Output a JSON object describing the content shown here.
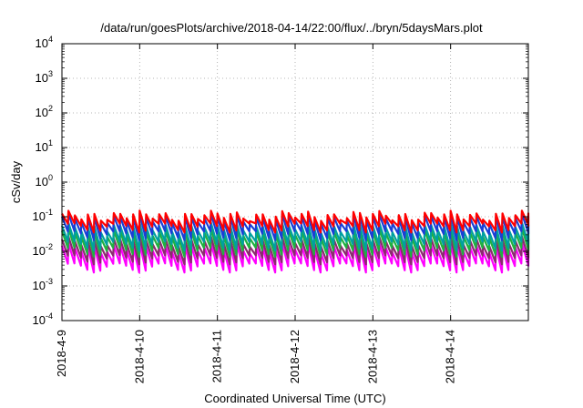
{
  "chart_data": {
    "type": "line",
    "title": "/data/run/goesPlots/archive/2018-04-14/22:00/flux/../bryn/5daysMars.plot",
    "xlabel": "Coordinated Universal Time (UTC)",
    "ylabel": "cSv/day",
    "yscale": "log",
    "ylim": [
      0.0001,
      10000
    ],
    "xlim": [
      "2018-04-09 00:00",
      "2018-04-15 00:00"
    ],
    "grid": true,
    "y_ticks": [
      {
        "base": "10",
        "exp": "-4"
      },
      {
        "base": "10",
        "exp": "-3"
      },
      {
        "base": "10",
        "exp": "-2"
      },
      {
        "base": "10",
        "exp": "-1"
      },
      {
        "base": "10",
        "exp": "0"
      },
      {
        "base": "10",
        "exp": "1"
      },
      {
        "base": "10",
        "exp": "2"
      },
      {
        "base": "10",
        "exp": "3"
      },
      {
        "base": "10",
        "exp": "4"
      }
    ],
    "x_ticks": [
      "2018-4-9",
      "2018-4-10",
      "2018-4-11",
      "2018-4-12",
      "2018-4-13",
      "2018-4-14"
    ],
    "x_tick_dates": [
      "2018-04-09",
      "2018-04-10",
      "2018-04-11",
      "2018-04-12",
      "2018-04-13",
      "2018-04-14"
    ],
    "sawtooth_period_hours": 2,
    "series": [
      {
        "color": "#ff0000",
        "peak": 0.11,
        "trough": 0.05
      },
      {
        "color": "#1a3fd6",
        "peak": 0.09,
        "trough": 0.03
      },
      {
        "color": "#00a0a0",
        "peak": 0.05,
        "trough": 0.015
      },
      {
        "color": "#20b040",
        "peak": 0.035,
        "trough": 0.01
      },
      {
        "color": "#8b2a6e",
        "peak": 0.02,
        "trough": 0.006
      },
      {
        "color": "#ff00ff",
        "peak": 0.013,
        "trough": 0.0035
      }
    ]
  }
}
